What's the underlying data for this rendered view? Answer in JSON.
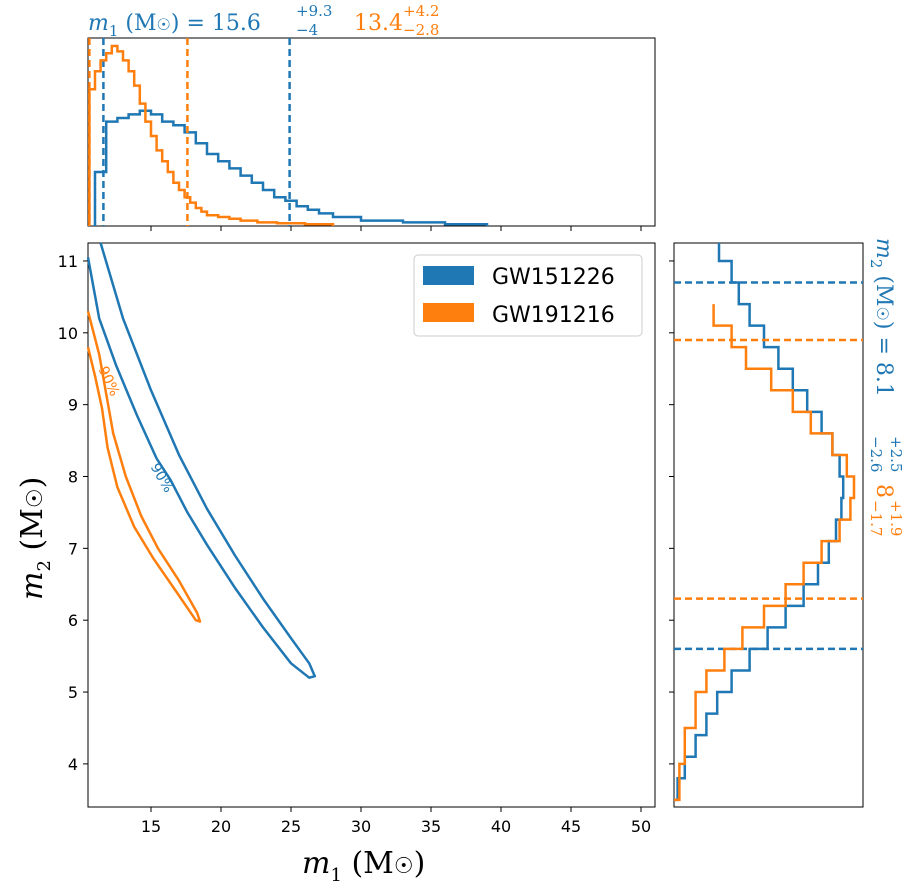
{
  "chart_data": {
    "type": "corner-plot",
    "series": [
      {
        "name": "GW151226",
        "color": "#1f77b4",
        "m1": {
          "median": 15.6,
          "plus": "+9.3",
          "minus": "−4",
          "lo": 11.6,
          "hi": 24.9,
          "hist_edges": [
            11.0,
            11.8,
            12.6,
            13.4,
            14.2,
            15.0,
            15.8,
            16.6,
            17.4,
            18.2,
            19.0,
            19.8,
            20.6,
            21.4,
            22.2,
            23.0,
            23.8,
            24.6,
            25.4,
            26.2,
            27.0,
            28.0,
            30.0,
            33.0,
            36.0,
            39.0
          ],
          "hist_values": [
            0.3,
            0.58,
            0.6,
            0.62,
            0.64,
            0.62,
            0.58,
            0.56,
            0.52,
            0.46,
            0.4,
            0.36,
            0.32,
            0.28,
            0.24,
            0.2,
            0.16,
            0.14,
            0.11,
            0.09,
            0.07,
            0.05,
            0.03,
            0.02,
            0.01
          ]
        },
        "m2": {
          "median": 8.1,
          "plus": "+2.5",
          "minus": "−2.6",
          "lo": 5.6,
          "hi": 10.7,
          "hist_edges": [
            3.5,
            3.8,
            4.1,
            4.4,
            4.7,
            5.0,
            5.3,
            5.6,
            5.9,
            6.2,
            6.5,
            6.8,
            7.1,
            7.4,
            7.7,
            8.0,
            8.3,
            8.6,
            8.9,
            9.2,
            9.5,
            9.8,
            10.1,
            10.4,
            10.7,
            11.0,
            11.3
          ],
          "hist_values": [
            0.02,
            0.06,
            0.12,
            0.18,
            0.24,
            0.32,
            0.42,
            0.52,
            0.62,
            0.72,
            0.8,
            0.86,
            0.9,
            0.93,
            0.94,
            0.92,
            0.88,
            0.82,
            0.74,
            0.66,
            0.58,
            0.5,
            0.42,
            0.36,
            0.32,
            0.25
          ]
        },
        "contour_label": "90%"
      },
      {
        "name": "GW191216",
        "color": "#ff7f0e",
        "m1": {
          "median": 13.4,
          "plus": "+4.2",
          "minus": "−2.8",
          "lo": 10.6,
          "hi": 17.6,
          "hist_edges": [
            10.6,
            11.0,
            11.4,
            11.8,
            12.2,
            12.6,
            13.0,
            13.4,
            13.8,
            14.2,
            14.6,
            15.0,
            15.4,
            15.8,
            16.2,
            16.6,
            17.0,
            17.4,
            17.8,
            18.2,
            18.6,
            19.0,
            19.8,
            20.6,
            21.4,
            22.6,
            24.0,
            26.0,
            28.0
          ],
          "hist_values": [
            0.76,
            0.86,
            0.92,
            0.96,
            1.0,
            0.97,
            0.92,
            0.86,
            0.78,
            0.68,
            0.58,
            0.5,
            0.42,
            0.36,
            0.3,
            0.24,
            0.2,
            0.16,
            0.13,
            0.1,
            0.08,
            0.06,
            0.05,
            0.04,
            0.03,
            0.02,
            0.015,
            0.01
          ]
        },
        "m2": {
          "median": 8.0,
          "plus": "+1.9",
          "minus": "−1.7",
          "lo": 6.3,
          "hi": 9.9,
          "hist_edges": [
            3.5,
            4.0,
            4.5,
            5.0,
            5.3,
            5.6,
            5.9,
            6.2,
            6.5,
            6.8,
            7.1,
            7.4,
            7.7,
            8.0,
            8.3,
            8.6,
            8.9,
            9.2,
            9.5,
            9.8,
            10.1,
            10.4
          ],
          "hist_values": [
            0.03,
            0.06,
            0.12,
            0.18,
            0.28,
            0.38,
            0.5,
            0.62,
            0.72,
            0.82,
            0.92,
            0.98,
            1.0,
            0.96,
            0.88,
            0.76,
            0.66,
            0.54,
            0.4,
            0.32,
            0.22
          ]
        },
        "contour_label": "90%"
      }
    ],
    "xlabel": "m₁ (M☉)",
    "ylabel": "m₂ (M☉)",
    "xlim": [
      10.5,
      51.0
    ],
    "ylim": [
      3.4,
      11.25
    ],
    "xticks": [
      "15",
      "20",
      "25",
      "30",
      "35",
      "40",
      "45",
      "50"
    ],
    "yticks": [
      "4",
      "5",
      "6",
      "7",
      "8",
      "9",
      "10",
      "11"
    ],
    "legend_position": "top-right"
  },
  "annotations": {
    "m1_prefix": "m",
    "m1_sub": "1",
    "m1_unit": " (M",
    "sun": "☉",
    "m1_eq": ") = ",
    "m1_blue_value": "15.6",
    "m1_blue_plus": "+9.3",
    "m1_blue_minus": "−4",
    "m1_orange_value": "13.4",
    "m1_orange_plus": "+4.2",
    "m1_orange_minus": "−2.8",
    "m2_prefix": "m",
    "m2_sub": "2",
    "m2_blue_value": "8.1",
    "m2_blue_plus": "+2.5",
    "m2_blue_minus": "−2.6",
    "m2_orange_value": "8",
    "m2_orange_plus": "+1.9",
    "m2_orange_minus": "−1.7"
  },
  "contour_label_text": "90%"
}
